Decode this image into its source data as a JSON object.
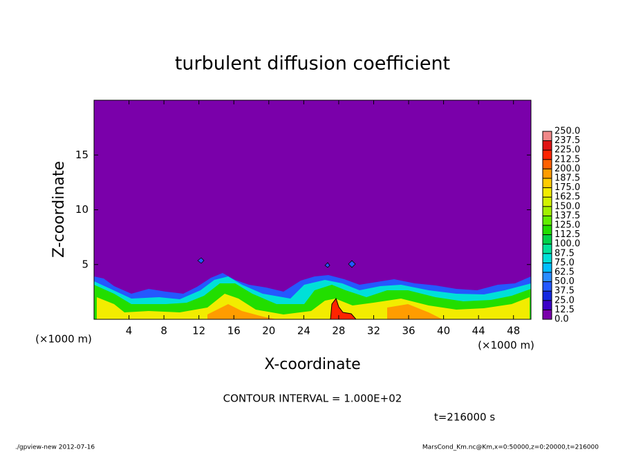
{
  "chart_data": {
    "type": "contour",
    "title": "turbulent diffusion coefficient",
    "x_label": "X-coordinate",
    "y_label": "Z-coordinate",
    "x_unit": "(×1000 m)",
    "x_unit_right": "(×1000 m)",
    "contour_interval": "CONTOUR INTERVAL = 1.000E+02",
    "time": "t=216000 s",
    "footer_left": "./gpview-new  2012-07-16",
    "footer_right": "MarsCond_Km.nc@Km,x=0:50000,z=0:20000,t=216000",
    "xlim": [
      0,
      50
    ],
    "ylim": [
      0,
      20
    ],
    "xticks": [
      4,
      8,
      12,
      16,
      20,
      24,
      28,
      32,
      36,
      40,
      44,
      48
    ],
    "yticks": [
      5,
      10,
      15
    ],
    "colorbar": {
      "levels": [
        {
          "value": 0,
          "label": "0.0"
        },
        {
          "value": 12.5,
          "label": "12.5"
        },
        {
          "value": 25,
          "label": "25.0"
        },
        {
          "value": 37.5,
          "label": "37.5"
        },
        {
          "value": 50,
          "label": "50.0"
        },
        {
          "value": 62.5,
          "label": "62.5"
        },
        {
          "value": 75,
          "label": "75.0"
        },
        {
          "value": 87.5,
          "label": "87.5"
        },
        {
          "value": 100,
          "label": "100.0"
        },
        {
          "value": 112.5,
          "label": "112.5"
        },
        {
          "value": 125,
          "label": "125.0"
        },
        {
          "value": 137.5,
          "label": "137.5"
        },
        {
          "value": 150,
          "label": "150.0"
        },
        {
          "value": 162.5,
          "label": "162.5"
        },
        {
          "value": 175,
          "label": "175.0"
        },
        {
          "value": 187.5,
          "label": "187.5"
        },
        {
          "value": 200,
          "label": "200.0"
        },
        {
          "value": 212.5,
          "label": "212.5"
        },
        {
          "value": 225,
          "label": "225.0"
        },
        {
          "value": 237.5,
          "label": "237.5"
        },
        {
          "value": 250,
          "label": "250.0"
        }
      ],
      "colors": [
        "#7a00aa",
        "#3c00c8",
        "#1428e0",
        "#2458ff",
        "#2a8cff",
        "#00beff",
        "#00e0d8",
        "#00e29a",
        "#00d24a",
        "#22de00",
        "#62ee00",
        "#a2f000",
        "#d2f200",
        "#f2ec00",
        "#ffcc00",
        "#ff9c00",
        "#ff6000",
        "#ff2400",
        "#e01414",
        "#f08888"
      ]
    }
  }
}
